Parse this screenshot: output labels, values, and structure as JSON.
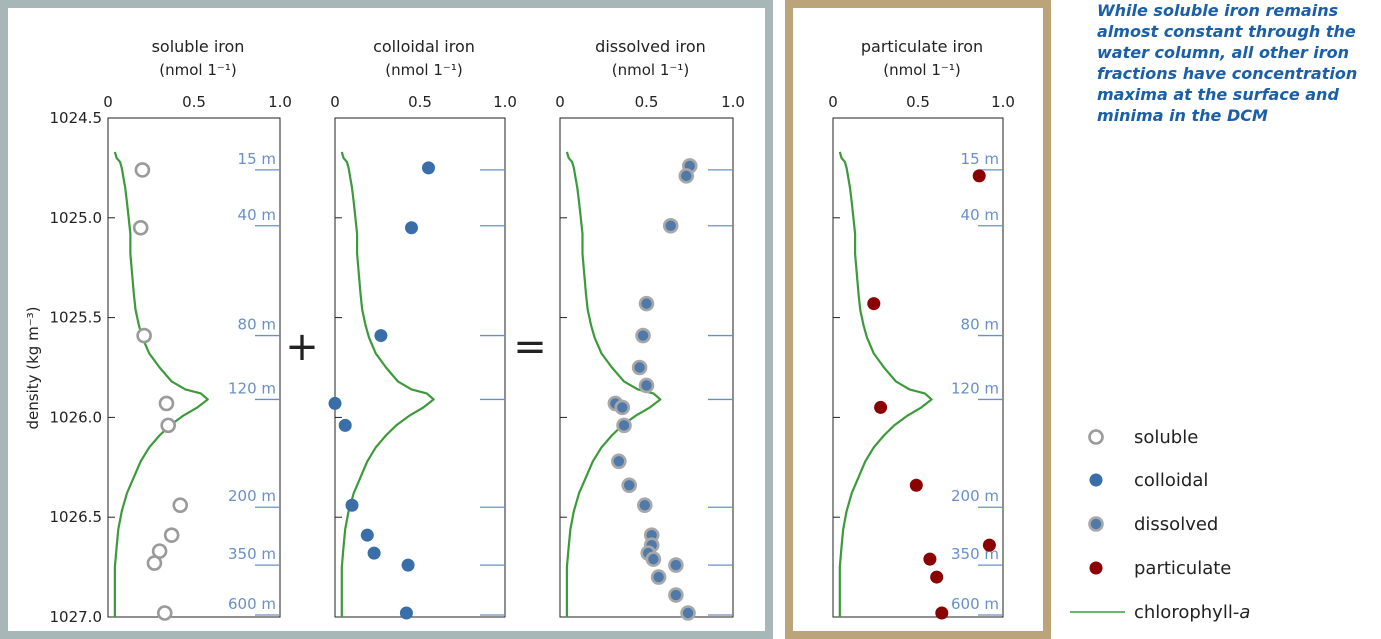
{
  "chart_data": {
    "type": "scatter",
    "y_axis": {
      "label": "density (kg m⁻³)",
      "ylim": [
        1024.5,
        1027.0
      ],
      "ticks": [
        "1024.5",
        "1025.0",
        "1025.5",
        "1026.0",
        "1026.5",
        "1027.0"
      ],
      "inverted": true
    },
    "x_axis": {
      "ticks": [
        "0",
        "0.5",
        "1.0"
      ],
      "xlim": [
        0,
        1.0
      ]
    },
    "depth_labels": [
      {
        "text": "15 m",
        "density": 1024.76
      },
      {
        "text": "40 m",
        "density": 1025.04
      },
      {
        "text": "80 m",
        "density": 1025.59
      },
      {
        "text": "120 m",
        "density": 1025.91
      },
      {
        "text": "200 m",
        "density": 1026.45
      },
      {
        "text": "350 m",
        "density": 1026.74
      },
      {
        "text": "600 m",
        "density": 1026.99
      }
    ],
    "panels": [
      {
        "title": "soluble iron",
        "unit": "(nmol 1⁻¹)",
        "series": "soluble",
        "points": [
          [
            0.2,
            1024.76
          ],
          [
            0.19,
            1025.05
          ],
          [
            0.21,
            1025.59
          ],
          [
            0.34,
            1025.93
          ],
          [
            0.35,
            1026.04
          ],
          [
            0.42,
            1026.44
          ],
          [
            0.37,
            1026.59
          ],
          [
            0.3,
            1026.67
          ],
          [
            0.27,
            1026.73
          ],
          [
            0.33,
            1026.98
          ]
        ]
      },
      {
        "title": "colloidal iron",
        "unit": "(nmol 1⁻¹)",
        "series": "colloidal",
        "points": [
          [
            0.55,
            1024.75
          ],
          [
            0.45,
            1025.05
          ],
          [
            0.27,
            1025.59
          ],
          [
            0.0,
            1025.93
          ],
          [
            0.06,
            1026.04
          ],
          [
            0.1,
            1026.44
          ],
          [
            0.19,
            1026.59
          ],
          [
            0.23,
            1026.68
          ],
          [
            0.43,
            1026.74
          ],
          [
            0.42,
            1026.98
          ]
        ]
      },
      {
        "title": "dissolved iron",
        "unit": "(nmol 1⁻¹)",
        "series": "dissolved",
        "points": [
          [
            0.75,
            1024.74
          ],
          [
            0.73,
            1024.79
          ],
          [
            0.64,
            1025.04
          ],
          [
            0.5,
            1025.43
          ],
          [
            0.48,
            1025.59
          ],
          [
            0.46,
            1025.75
          ],
          [
            0.5,
            1025.84
          ],
          [
            0.32,
            1025.93
          ],
          [
            0.36,
            1025.95
          ],
          [
            0.37,
            1026.04
          ],
          [
            0.34,
            1026.22
          ],
          [
            0.4,
            1026.34
          ],
          [
            0.49,
            1026.44
          ],
          [
            0.53,
            1026.59
          ],
          [
            0.53,
            1026.64
          ],
          [
            0.51,
            1026.68
          ],
          [
            0.54,
            1026.71
          ],
          [
            0.67,
            1026.74
          ],
          [
            0.57,
            1026.8
          ],
          [
            0.67,
            1026.89
          ],
          [
            0.74,
            1026.98
          ]
        ]
      },
      {
        "title": "particulate iron",
        "unit": "(nmol 1⁻¹)",
        "series": "particulate",
        "points": [
          [
            0.86,
            1024.79
          ],
          [
            0.24,
            1025.43
          ],
          [
            0.28,
            1025.95
          ],
          [
            0.49,
            1026.34
          ],
          [
            0.92,
            1026.64
          ],
          [
            0.57,
            1026.71
          ],
          [
            0.61,
            1026.8
          ],
          [
            0.64,
            1026.98
          ]
        ]
      }
    ],
    "symbols": {
      "plus": "+",
      "equals": "="
    },
    "legend": [
      {
        "series": "soluble",
        "label": "soluble",
        "fill": "#ffffff",
        "stroke": "#9a9a9a"
      },
      {
        "series": "colloidal",
        "label": "colloidal",
        "fill": "#3a6ea8",
        "stroke": "#3a6ea8"
      },
      {
        "series": "dissolved",
        "label": "dissolved",
        "fill": "#4f79a8",
        "stroke": "#a8a8a8"
      },
      {
        "series": "particulate",
        "label": "particulate",
        "fill": "#8b0000",
        "stroke": "#8b0000"
      },
      {
        "series": "chlorophyll",
        "label": "chlorophyll-",
        "label_italic": "a",
        "color": "#3c9a3c"
      }
    ],
    "chlorophyll_profile": [
      [
        0.04,
        1024.67
      ],
      [
        0.05,
        1024.7
      ],
      [
        0.07,
        1024.72
      ],
      [
        0.08,
        1024.75
      ],
      [
        0.09,
        1024.8
      ],
      [
        0.1,
        1024.85
      ],
      [
        0.11,
        1024.92
      ],
      [
        0.12,
        1025.0
      ],
      [
        0.13,
        1025.08
      ],
      [
        0.13,
        1025.18
      ],
      [
        0.14,
        1025.28
      ],
      [
        0.15,
        1025.38
      ],
      [
        0.16,
        1025.46
      ],
      [
        0.18,
        1025.54
      ],
      [
        0.2,
        1025.6
      ],
      [
        0.24,
        1025.68
      ],
      [
        0.3,
        1025.75
      ],
      [
        0.37,
        1025.82
      ],
      [
        0.45,
        1025.86
      ],
      [
        0.54,
        1025.88
      ],
      [
        0.58,
        1025.91
      ],
      [
        0.52,
        1025.95
      ],
      [
        0.44,
        1025.99
      ],
      [
        0.36,
        1026.04
      ],
      [
        0.3,
        1026.09
      ],
      [
        0.24,
        1026.15
      ],
      [
        0.19,
        1026.22
      ],
      [
        0.15,
        1026.3
      ],
      [
        0.11,
        1026.38
      ],
      [
        0.08,
        1026.47
      ],
      [
        0.06,
        1026.56
      ],
      [
        0.05,
        1026.65
      ],
      [
        0.04,
        1026.75
      ],
      [
        0.04,
        1026.85
      ],
      [
        0.04,
        1026.95
      ],
      [
        0.04,
        1027.0
      ]
    ],
    "colors": {
      "frame_gray": "#a7b6b6",
      "frame_tan": "#bca47a",
      "depth_label": "#6a8fc8"
    }
  },
  "annotation": "While soluble iron remains almost constant through the water column, all other iron fractions have concentration maxima at the surface and minima in the DCM"
}
